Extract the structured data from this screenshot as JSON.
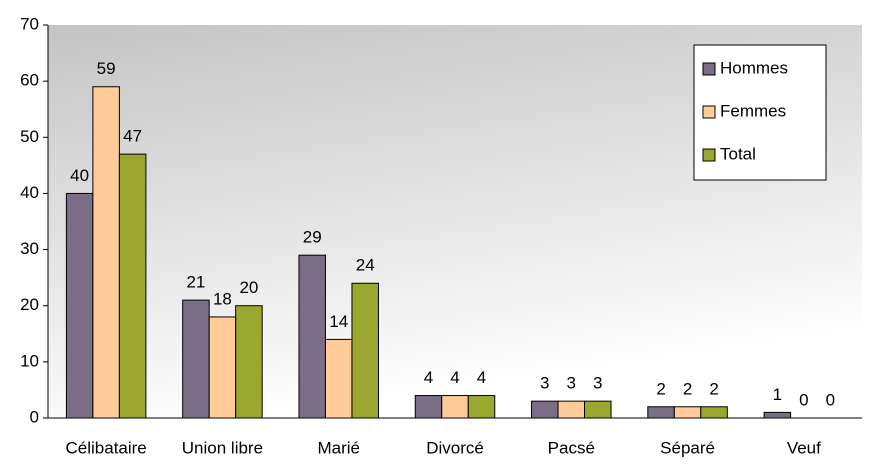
{
  "chart_data": {
    "type": "bar",
    "categories": [
      "Célibataire",
      "Union libre",
      "Marié",
      "Divorcé",
      "Pacsé",
      "Séparé",
      "Veuf"
    ],
    "series": [
      {
        "name": "Hommes",
        "color": "#7a6e87",
        "values": [
          40,
          21,
          29,
          4,
          3,
          2,
          1
        ]
      },
      {
        "name": "Femmes",
        "color": "#ffcc99",
        "values": [
          59,
          18,
          14,
          4,
          3,
          2,
          0
        ]
      },
      {
        "name": "Total",
        "color": "#9aa832",
        "values": [
          47,
          20,
          24,
          4,
          3,
          2,
          0
        ]
      }
    ],
    "ylim": [
      0,
      70
    ],
    "yticks": [
      0,
      10,
      20,
      30,
      40,
      50,
      60,
      70
    ],
    "grid": false,
    "legend": "top-right"
  }
}
